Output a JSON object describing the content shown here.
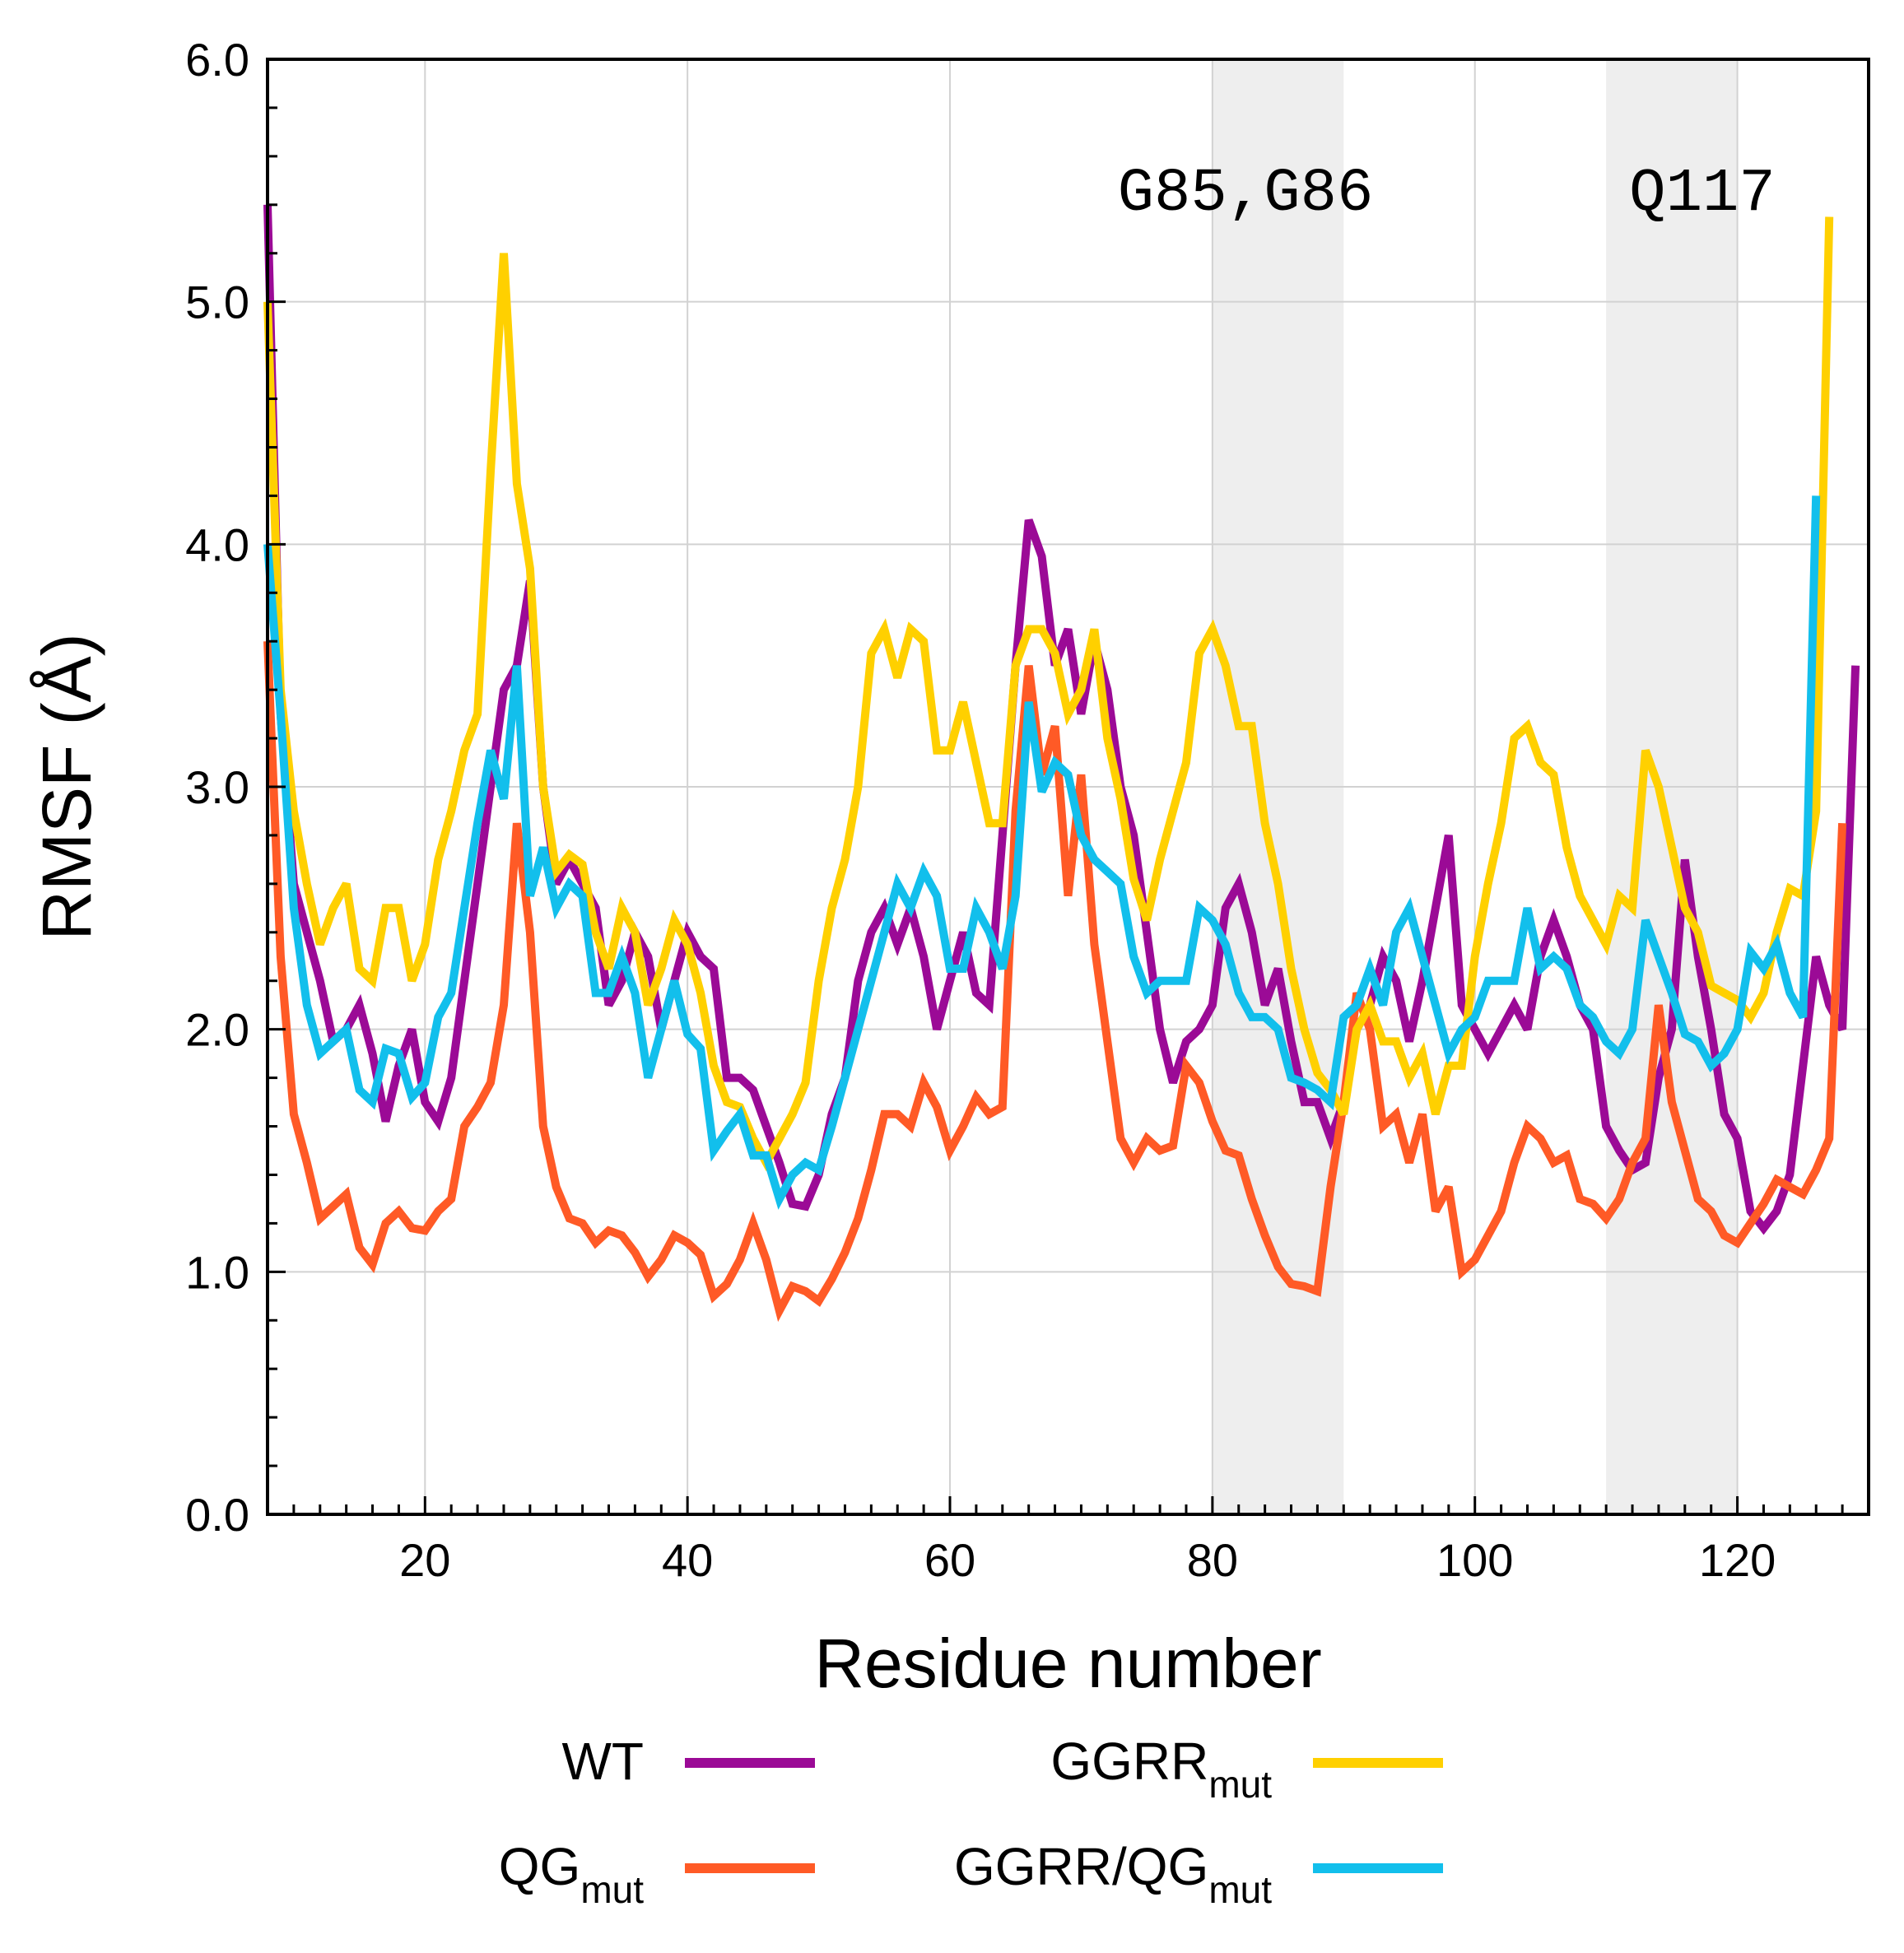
{
  "chart_data": {
    "type": "line",
    "xlabel": "Residue number",
    "ylabel": "RMSF (Å)",
    "xlim": [
      8,
      130
    ],
    "ylim": [
      0,
      6
    ],
    "xticks": [
      20,
      40,
      60,
      80,
      100,
      120
    ],
    "xtick_labels": [
      "20",
      "40",
      "60",
      "80",
      "100",
      "120"
    ],
    "yticks": [
      0,
      1,
      2,
      3,
      4,
      5,
      6
    ],
    "ytick_labels": [
      "0.0",
      "1.0",
      "2.0",
      "3.0",
      "4.0",
      "5.0",
      "6.0"
    ],
    "grid": true,
    "shaded_regions": [
      {
        "x_range": [
          80,
          90
        ],
        "label": "G85,G86"
      },
      {
        "x_range": [
          110,
          120
        ],
        "label": "Q117"
      }
    ],
    "x_start": 8,
    "x_step": 1,
    "series": [
      {
        "name": "WT",
        "legend_base": "WT",
        "legend_sub": "",
        "color": "#9b0a96",
        "values": [
          5.4,
          3.3,
          2.6,
          2.4,
          2.2,
          1.95,
          2.0,
          2.1,
          1.9,
          1.62,
          1.85,
          2.0,
          1.7,
          1.62,
          1.8,
          2.2,
          2.6,
          3.0,
          3.4,
          3.5,
          3.85,
          3.0,
          2.6,
          2.7,
          2.6,
          2.5,
          2.1,
          2.2,
          2.4,
          2.3,
          2.0,
          2.2,
          2.4,
          2.3,
          2.25,
          1.8,
          1.8,
          1.75,
          1.6,
          1.45,
          1.28,
          1.27,
          1.4,
          1.65,
          1.8,
          2.2,
          2.4,
          2.5,
          2.35,
          2.5,
          2.3,
          2.0,
          2.2,
          2.4,
          2.15,
          2.1,
          2.8,
          3.5,
          4.1,
          3.95,
          3.5,
          3.65,
          3.3,
          3.6,
          3.4,
          3.0,
          2.8,
          2.4,
          2.0,
          1.78,
          1.95,
          2.0,
          2.1,
          2.5,
          2.6,
          2.4,
          2.1,
          2.25,
          1.95,
          1.7,
          1.7,
          1.55,
          1.7,
          2.0,
          2.1,
          2.3,
          2.2,
          1.95,
          2.2,
          2.5,
          2.8,
          2.1,
          2.0,
          1.9,
          2.0,
          2.1,
          2.0,
          2.3,
          2.45,
          2.3,
          2.1,
          2.0,
          1.6,
          1.5,
          1.42,
          1.45,
          1.8,
          2.0,
          2.7,
          2.3,
          2.0,
          1.65,
          1.55,
          1.25,
          1.18,
          1.25,
          1.4,
          1.85,
          2.3,
          2.1,
          2.0,
          3.5
        ]
      },
      {
        "name": "QG_mut",
        "legend_base": "QG",
        "legend_sub": "mut",
        "color": "#ff5a26",
        "values": [
          3.6,
          2.3,
          1.65,
          1.45,
          1.22,
          1.27,
          1.32,
          1.1,
          1.03,
          1.2,
          1.25,
          1.18,
          1.17,
          1.25,
          1.3,
          1.6,
          1.68,
          1.78,
          2.1,
          2.85,
          2.4,
          1.6,
          1.35,
          1.22,
          1.2,
          1.12,
          1.17,
          1.15,
          1.08,
          0.98,
          1.05,
          1.15,
          1.12,
          1.07,
          0.9,
          0.95,
          1.05,
          1.2,
          1.05,
          0.84,
          0.94,
          0.92,
          0.88,
          0.97,
          1.08,
          1.22,
          1.42,
          1.65,
          1.65,
          1.6,
          1.78,
          1.68,
          1.5,
          1.6,
          1.72,
          1.65,
          1.68,
          2.9,
          3.5,
          3.05,
          3.25,
          2.55,
          3.05,
          2.35,
          1.95,
          1.55,
          1.45,
          1.55,
          1.5,
          1.52,
          1.85,
          1.78,
          1.62,
          1.5,
          1.48,
          1.3,
          1.15,
          1.02,
          0.95,
          0.94,
          0.92,
          1.35,
          1.7,
          2.15,
          2.0,
          1.6,
          1.65,
          1.45,
          1.65,
          1.25,
          1.35,
          1.0,
          1.05,
          1.15,
          1.25,
          1.45,
          1.6,
          1.55,
          1.45,
          1.48,
          1.3,
          1.28,
          1.22,
          1.3,
          1.45,
          1.55,
          2.1,
          1.7,
          1.5,
          1.3,
          1.25,
          1.15,
          1.12,
          1.2,
          1.28,
          1.38,
          1.35,
          1.32,
          1.42,
          1.55,
          2.85
        ]
      },
      {
        "name": "GGRR_mut",
        "legend_base": "GGRR",
        "legend_sub": "mut",
        "color": "#ffd000",
        "values": [
          5.0,
          3.4,
          2.9,
          2.6,
          2.35,
          2.5,
          2.6,
          2.25,
          2.2,
          2.5,
          2.5,
          2.2,
          2.35,
          2.7,
          2.9,
          3.15,
          3.3,
          4.3,
          5.2,
          4.25,
          3.9,
          3.0,
          2.65,
          2.72,
          2.68,
          2.4,
          2.25,
          2.5,
          2.4,
          2.1,
          2.25,
          2.45,
          2.35,
          2.15,
          1.85,
          1.7,
          1.68,
          1.55,
          1.45,
          1.55,
          1.65,
          1.78,
          2.2,
          2.5,
          2.7,
          3.0,
          3.55,
          3.65,
          3.45,
          3.65,
          3.6,
          3.15,
          3.15,
          3.35,
          3.1,
          2.85,
          2.85,
          3.5,
          3.65,
          3.65,
          3.55,
          3.3,
          3.4,
          3.65,
          3.2,
          2.95,
          2.62,
          2.45,
          2.7,
          2.9,
          3.1,
          3.55,
          3.65,
          3.5,
          3.25,
          3.25,
          2.85,
          2.6,
          2.25,
          2.0,
          1.82,
          1.75,
          1.65,
          2.0,
          2.1,
          1.95,
          1.95,
          1.8,
          1.9,
          1.65,
          1.85,
          1.85,
          2.3,
          2.6,
          2.85,
          3.2,
          3.25,
          3.1,
          3.05,
          2.75,
          2.55,
          2.45,
          2.35,
          2.55,
          2.5,
          3.15,
          3.0,
          2.75,
          2.5,
          2.4,
          2.18,
          2.15,
          2.12,
          2.05,
          2.15,
          2.4,
          2.58,
          2.55,
          2.9,
          5.35
        ]
      },
      {
        "name": "GGRR/QG_mut",
        "legend_base": "GGRR/QG",
        "legend_sub": "mut",
        "color": "#12bfec",
        "values": [
          4.0,
          3.3,
          2.5,
          2.1,
          1.9,
          1.95,
          2.0,
          1.75,
          1.7,
          1.92,
          1.9,
          1.72,
          1.78,
          2.05,
          2.15,
          2.5,
          2.85,
          3.15,
          2.95,
          3.5,
          2.55,
          2.75,
          2.5,
          2.6,
          2.55,
          2.15,
          2.15,
          2.3,
          2.15,
          1.8,
          2.0,
          2.2,
          1.98,
          1.92,
          1.5,
          1.58,
          1.65,
          1.48,
          1.48,
          1.3,
          1.4,
          1.45,
          1.42,
          1.6,
          1.8,
          2.0,
          2.2,
          2.4,
          2.6,
          2.5,
          2.65,
          2.55,
          2.25,
          2.25,
          2.5,
          2.4,
          2.25,
          2.55,
          3.35,
          2.98,
          3.1,
          3.05,
          2.8,
          2.7,
          2.65,
          2.6,
          2.3,
          2.15,
          2.2,
          2.2,
          2.2,
          2.5,
          2.45,
          2.35,
          2.15,
          2.05,
          2.05,
          2.0,
          1.8,
          1.78,
          1.75,
          1.7,
          2.05,
          2.1,
          2.25,
          2.1,
          2.4,
          2.5,
          2.3,
          2.1,
          1.9,
          2.0,
          2.05,
          2.2,
          2.2,
          2.2,
          2.5,
          2.25,
          2.3,
          2.25,
          2.1,
          2.05,
          1.95,
          1.9,
          2.0,
          2.45,
          2.3,
          2.15,
          1.98,
          1.95,
          1.85,
          1.9,
          2.0,
          2.32,
          2.25,
          2.35,
          2.15,
          2.05,
          4.2
        ]
      }
    ]
  }
}
